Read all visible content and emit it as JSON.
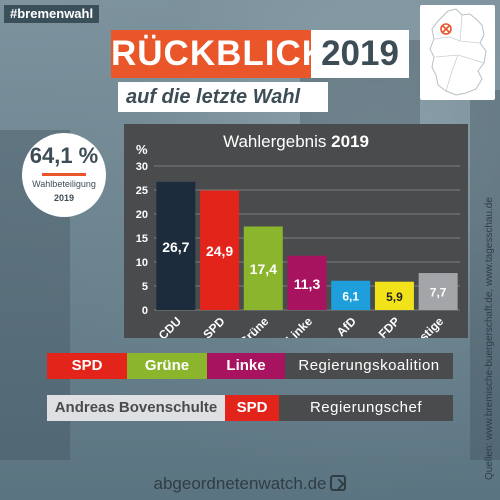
{
  "hashtag": "#bremenwahl",
  "headline": {
    "title": "RÜCKBLICK",
    "year": "2019",
    "subtitle": "auf die letzte Wahl"
  },
  "map": {
    "icon": "germany-map-icon",
    "marker": "bremen-marker-icon"
  },
  "turnout": {
    "value": "64,1 %",
    "label": "Wahlbeteiligung",
    "year": "2019"
  },
  "chart_data": {
    "type": "bar",
    "title": "Wahlergebnis",
    "title_year": "2019",
    "ylabel": "%",
    "ylim": [
      0,
      30
    ],
    "yticks": [
      0,
      5,
      10,
      15,
      20,
      25,
      30
    ],
    "grid": true,
    "categories": [
      "CDU",
      "SPD",
      "Grüne",
      "Linke",
      "AfD",
      "FDP",
      "Sonstige"
    ],
    "values": [
      26.7,
      24.9,
      17.4,
      11.3,
      6.1,
      5.9,
      7.7
    ],
    "value_labels": [
      "26,7",
      "24,9",
      "17,4",
      "11,3",
      "6,1",
      "5,9",
      "7,7"
    ],
    "colors": [
      "#1c2c3c",
      "#e2241b",
      "#8ab52c",
      "#a8135f",
      "#1e9fdc",
      "#f2e21a",
      "#a3a5a8"
    ],
    "label_colors": [
      "#ffffff",
      "#ffffff",
      "#ffffff",
      "#ffffff",
      "#ffffff",
      "#222222",
      "#ffffff"
    ]
  },
  "coalition": {
    "parties": [
      {
        "label": "SPD",
        "bg": "#e2241b",
        "fg": "#ffffff"
      },
      {
        "label": "Grüne",
        "bg": "#8ab52c",
        "fg": "#ffffff"
      },
      {
        "label": "Linke",
        "bg": "#a8135f",
        "fg": "#ffffff"
      }
    ],
    "description": "Regierungskoalition"
  },
  "leader": {
    "name": "Andreas Bovenschulte",
    "party": "SPD",
    "description": "Regierungschef"
  },
  "source": "Quellen: www.bremische-buergerschaft.de, www.tagesschau.de",
  "footer": {
    "site": "abgeordnetenwatch.de",
    "logo": "abgeordnetenwatch-logo-icon"
  }
}
